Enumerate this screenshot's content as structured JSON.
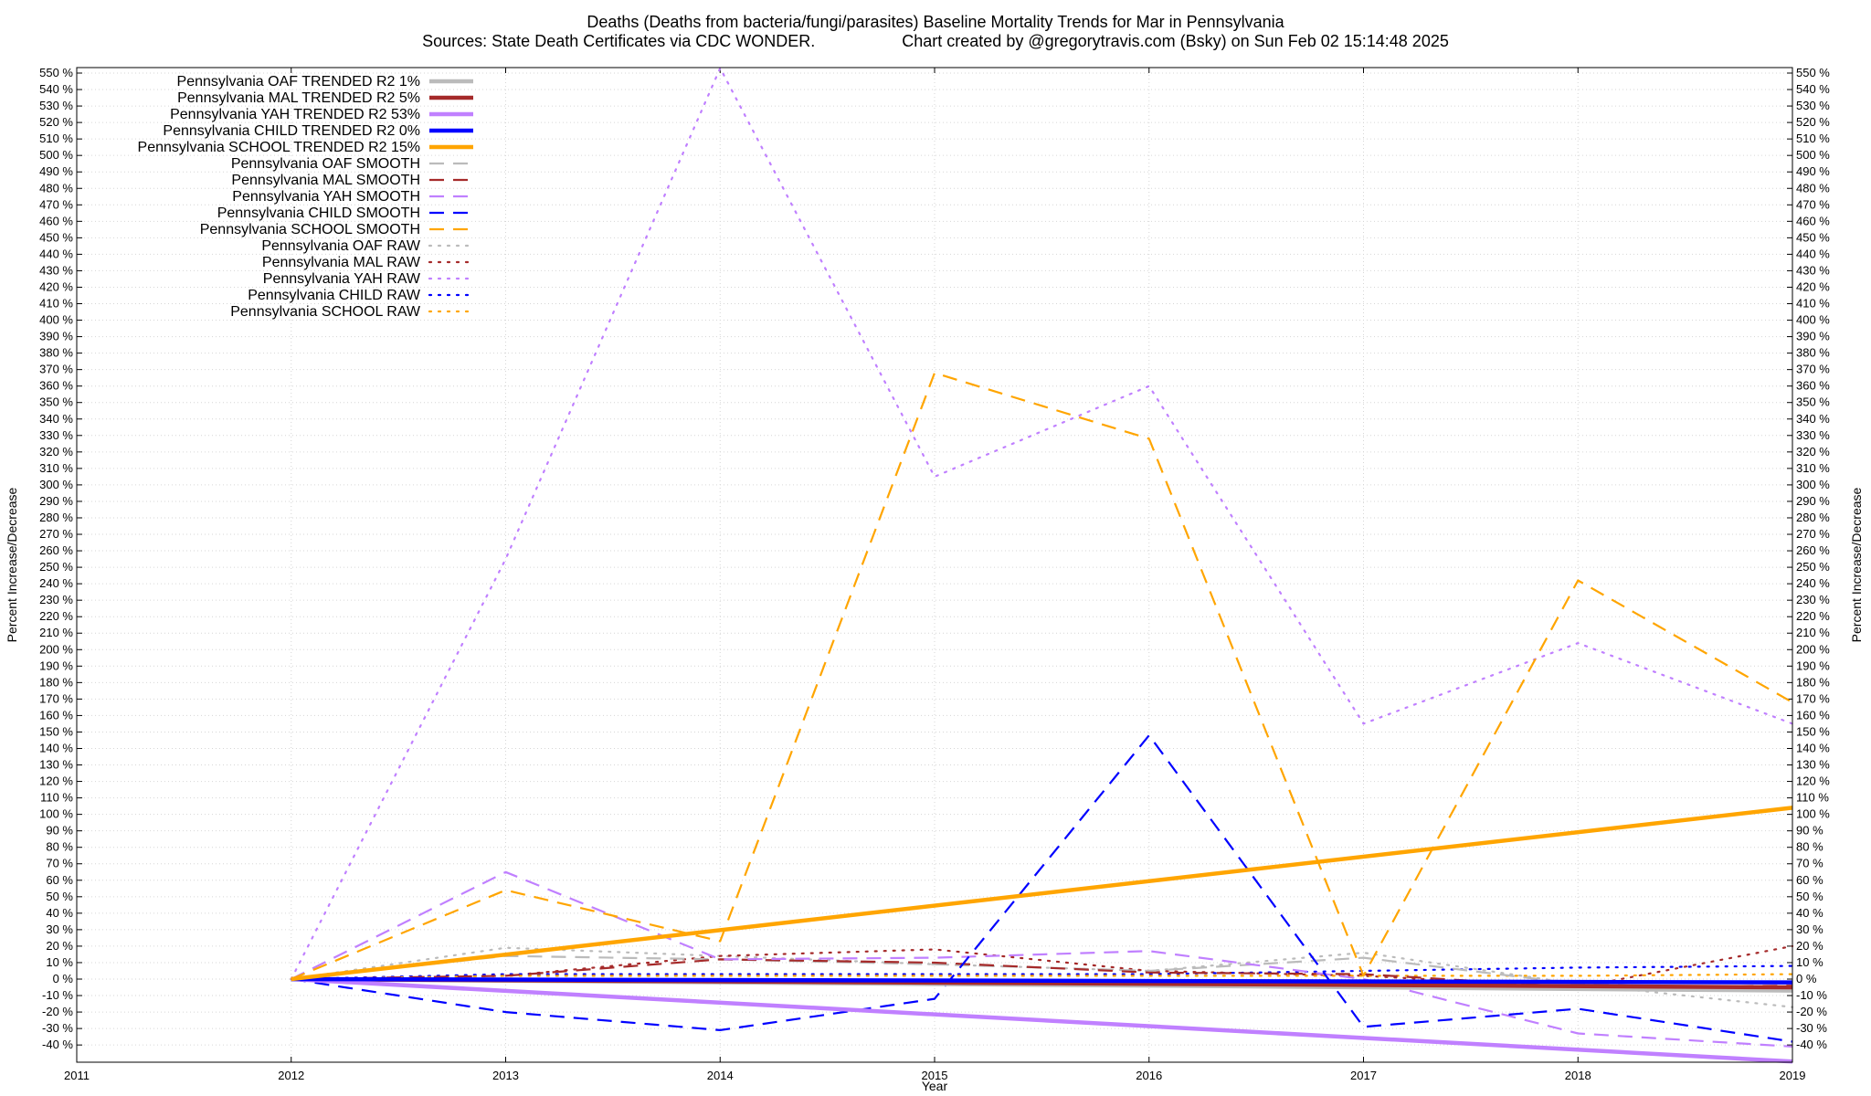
{
  "header": {
    "title": "Deaths (Deaths from bacteria/fungi/parasites)  Baseline Mortality Trends for Mar in Pennsylvania",
    "sources": "Sources: State Death Certificates via CDC WONDER.",
    "credit": "Chart created by @gregorytravis.com (Bsky) on Sun Feb 02 15:14:48 2025"
  },
  "chart_data": {
    "type": "line",
    "xlabel": "Year",
    "ylabel": "Percent Increase/Decrease",
    "ylabel_right": "Percent Increase/Decrease",
    "xlim": [
      2011,
      2019
    ],
    "ylim": [
      -50,
      555
    ],
    "x_ticks": [
      2011,
      2012,
      2013,
      2014,
      2015,
      2016,
      2017,
      2018,
      2019
    ],
    "y_ticks": [
      -40,
      -30,
      -20,
      -10,
      0,
      10,
      20,
      30,
      40,
      50,
      60,
      70,
      80,
      90,
      100,
      110,
      120,
      130,
      140,
      150,
      160,
      170,
      180,
      190,
      200,
      210,
      220,
      230,
      240,
      250,
      260,
      270,
      280,
      290,
      300,
      310,
      320,
      330,
      340,
      350,
      360,
      370,
      380,
      390,
      400,
      410,
      420,
      430,
      440,
      450,
      460,
      470,
      480,
      490,
      500,
      510,
      520,
      530,
      540,
      550
    ],
    "y_tick_suffix": " %",
    "grid": true,
    "legend": "top-left",
    "series": [
      {
        "name": "Pennsylvania OAF TRENDED R2",
        "r2": "1%",
        "color": "#bbbbbb",
        "style": "solid",
        "x": [
          2012,
          2019
        ],
        "y": [
          0,
          -7
        ]
      },
      {
        "name": "Pennsylvania MAL TRENDED R2",
        "r2": "5%",
        "color": "#a52a2a",
        "style": "solid",
        "x": [
          2012,
          2019
        ],
        "y": [
          0,
          -5
        ]
      },
      {
        "name": "Pennsylvania YAH TRENDED R2",
        "r2": "53%",
        "color": "#c080ff",
        "style": "solid",
        "x": [
          2012,
          2019
        ],
        "y": [
          0,
          -50
        ]
      },
      {
        "name": "Pennsylvania CHILD TRENDED R2",
        "r2": "0%",
        "color": "#0000ff",
        "style": "solid",
        "x": [
          2012,
          2019
        ],
        "y": [
          0,
          -2
        ]
      },
      {
        "name": "Pennsylvania SCHOOL TRENDED R2",
        "r2": "15%",
        "color": "#ffa500",
        "style": "solid",
        "x": [
          2012,
          2019
        ],
        "y": [
          0,
          104
        ]
      },
      {
        "name": "Pennsylvania OAF SMOOTH",
        "r2": "",
        "color": "#bbbbbb",
        "style": "dashed",
        "x": [
          2012,
          2013,
          2014,
          2015,
          2016,
          2017,
          2018,
          2019
        ],
        "y": [
          0,
          14,
          12,
          9,
          5,
          13,
          -3,
          -7
        ]
      },
      {
        "name": "Pennsylvania MAL SMOOTH",
        "r2": "",
        "color": "#a52a2a",
        "style": "dashed",
        "x": [
          2012,
          2013,
          2014,
          2015,
          2016,
          2017,
          2018,
          2019
        ],
        "y": [
          0,
          2,
          12,
          10,
          4,
          3,
          -5,
          -4
        ]
      },
      {
        "name": "Pennsylvania YAH SMOOTH",
        "r2": "",
        "color": "#c080ff",
        "style": "dashed",
        "x": [
          2012,
          2013,
          2014,
          2015,
          2016,
          2017,
          2018,
          2019
        ],
        "y": [
          0,
          65,
          12,
          13,
          17,
          0,
          -33,
          -41
        ]
      },
      {
        "name": "Pennsylvania CHILD SMOOTH",
        "r2": "",
        "color": "#0000ff",
        "style": "dashed",
        "x": [
          2012,
          2013,
          2014,
          2015,
          2016,
          2017,
          2018,
          2019
        ],
        "y": [
          0,
          -20,
          -31,
          -12,
          148,
          -29,
          -18,
          -38
        ]
      },
      {
        "name": "Pennsylvania SCHOOL SMOOTH",
        "r2": "",
        "color": "#ffa500",
        "style": "dashed",
        "x": [
          2012,
          2013,
          2014,
          2015,
          2016,
          2017,
          2018,
          2019
        ],
        "y": [
          0,
          54,
          23,
          368,
          328,
          2,
          242,
          168
        ]
      },
      {
        "name": "Pennsylvania OAF RAW",
        "r2": "",
        "color": "#bbbbbb",
        "style": "dotted",
        "x": [
          2012,
          2013,
          2014,
          2015,
          2016,
          2017,
          2018,
          2019
        ],
        "y": [
          0,
          19,
          14,
          9,
          5,
          16,
          -3,
          -17
        ]
      },
      {
        "name": "Pennsylvania MAL RAW",
        "r2": "",
        "color": "#a52a2a",
        "style": "dotted",
        "x": [
          2012,
          2013,
          2014,
          2015,
          2016,
          2017,
          2018,
          2019
        ],
        "y": [
          0,
          2,
          14,
          18,
          5,
          2,
          -5,
          20
        ]
      },
      {
        "name": "Pennsylvania YAH RAW",
        "r2": "",
        "color": "#c080ff",
        "style": "dotted",
        "x": [
          2012,
          2013,
          2014,
          2015,
          2016,
          2017,
          2018,
          2019
        ],
        "y": [
          0,
          255,
          553,
          305,
          360,
          155,
          204,
          155
        ]
      },
      {
        "name": "Pennsylvania CHILD RAW",
        "r2": "",
        "color": "#0000ff",
        "style": "dotted",
        "x": [
          2012,
          2013,
          2014,
          2015,
          2016,
          2017,
          2018,
          2019
        ],
        "y": [
          0,
          3,
          3,
          3,
          3,
          5,
          7,
          8
        ]
      },
      {
        "name": "Pennsylvania SCHOOL RAW",
        "r2": "",
        "color": "#ffa500",
        "style": "dotted",
        "x": [
          2012,
          2013,
          2014,
          2015,
          2016,
          2017,
          2018,
          2019
        ],
        "y": [
          0,
          2,
          2,
          2,
          2,
          2,
          2,
          3
        ]
      }
    ]
  }
}
